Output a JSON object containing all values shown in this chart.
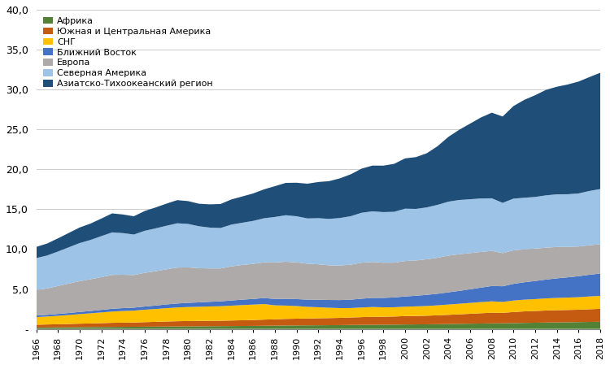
{
  "years": [
    1966,
    1967,
    1968,
    1969,
    1970,
    1971,
    1972,
    1973,
    1974,
    1975,
    1976,
    1977,
    1978,
    1979,
    1980,
    1981,
    1982,
    1983,
    1984,
    1985,
    1986,
    1987,
    1988,
    1989,
    1990,
    1991,
    1992,
    1993,
    1994,
    1995,
    1996,
    1997,
    1998,
    1999,
    2000,
    2001,
    2002,
    2003,
    2004,
    2005,
    2006,
    2007,
    2008,
    2009,
    2010,
    2011,
    2012,
    2013,
    2014,
    2015,
    2016,
    2017,
    2018
  ],
  "series": {
    "Африка": [
      0.18,
      0.19,
      0.2,
      0.21,
      0.22,
      0.23,
      0.24,
      0.25,
      0.26,
      0.27,
      0.28,
      0.29,
      0.3,
      0.31,
      0.32,
      0.33,
      0.34,
      0.35,
      0.36,
      0.37,
      0.38,
      0.4,
      0.41,
      0.43,
      0.44,
      0.45,
      0.46,
      0.47,
      0.48,
      0.5,
      0.51,
      0.52,
      0.53,
      0.54,
      0.56,
      0.57,
      0.58,
      0.6,
      0.62,
      0.64,
      0.66,
      0.68,
      0.7,
      0.71,
      0.73,
      0.76,
      0.78,
      0.8,
      0.82,
      0.84,
      0.86,
      0.88,
      0.9
    ],
    "Южная и Центральная Америка": [
      0.35,
      0.37,
      0.39,
      0.41,
      0.44,
      0.46,
      0.49,
      0.52,
      0.53,
      0.54,
      0.57,
      0.6,
      0.63,
      0.66,
      0.67,
      0.67,
      0.68,
      0.68,
      0.7,
      0.72,
      0.74,
      0.77,
      0.8,
      0.83,
      0.85,
      0.86,
      0.88,
      0.89,
      0.91,
      0.94,
      0.97,
      1.0,
      1.0,
      1.02,
      1.05,
      1.06,
      1.08,
      1.11,
      1.15,
      1.19,
      1.24,
      1.29,
      1.33,
      1.31,
      1.39,
      1.44,
      1.47,
      1.51,
      1.53,
      1.54,
      1.55,
      1.59,
      1.62
    ],
    "СНГ": [
      0.95,
      1.0,
      1.06,
      1.13,
      1.2,
      1.27,
      1.34,
      1.41,
      1.46,
      1.49,
      1.56,
      1.61,
      1.67,
      1.72,
      1.76,
      1.78,
      1.8,
      1.82,
      1.86,
      1.9,
      1.93,
      1.95,
      1.75,
      1.67,
      1.58,
      1.46,
      1.38,
      1.3,
      1.22,
      1.18,
      1.21,
      1.23,
      1.18,
      1.16,
      1.18,
      1.2,
      1.22,
      1.25,
      1.29,
      1.33,
      1.36,
      1.4,
      1.43,
      1.37,
      1.44,
      1.47,
      1.49,
      1.52,
      1.54,
      1.55,
      1.57,
      1.6,
      1.62
    ],
    "Ближний Восток": [
      0.2,
      0.21,
      0.23,
      0.25,
      0.27,
      0.29,
      0.32,
      0.35,
      0.36,
      0.37,
      0.4,
      0.43,
      0.47,
      0.5,
      0.52,
      0.55,
      0.58,
      0.61,
      0.65,
      0.68,
      0.71,
      0.75,
      0.8,
      0.84,
      0.87,
      0.9,
      0.94,
      0.97,
      1.01,
      1.05,
      1.1,
      1.14,
      1.18,
      1.23,
      1.28,
      1.33,
      1.39,
      1.45,
      1.53,
      1.61,
      1.71,
      1.81,
      1.92,
      1.96,
      2.09,
      2.18,
      2.27,
      2.36,
      2.45,
      2.54,
      2.63,
      2.72,
      2.8
    ],
    "Европа": [
      3.2,
      3.3,
      3.5,
      3.68,
      3.85,
      3.98,
      4.1,
      4.24,
      4.18,
      4.08,
      4.22,
      4.3,
      4.4,
      4.5,
      4.44,
      4.28,
      4.18,
      4.12,
      4.27,
      4.35,
      4.39,
      4.48,
      4.57,
      4.65,
      4.6,
      4.5,
      4.44,
      4.34,
      4.33,
      4.38,
      4.51,
      4.5,
      4.41,
      4.35,
      4.44,
      4.42,
      4.46,
      4.51,
      4.6,
      4.59,
      4.53,
      4.47,
      4.4,
      4.15,
      4.2,
      4.12,
      4.06,
      3.99,
      3.93,
      3.82,
      3.72,
      3.7,
      3.67
    ],
    "Северная Америка": [
      4.0,
      4.13,
      4.32,
      4.55,
      4.78,
      4.92,
      5.14,
      5.33,
      5.22,
      5.08,
      5.27,
      5.37,
      5.46,
      5.55,
      5.45,
      5.26,
      5.12,
      5.07,
      5.24,
      5.29,
      5.39,
      5.52,
      5.7,
      5.83,
      5.78,
      5.68,
      5.78,
      5.82,
      5.95,
      6.08,
      6.26,
      6.35,
      6.34,
      6.38,
      6.56,
      6.46,
      6.5,
      6.63,
      6.76,
      6.8,
      6.75,
      6.7,
      6.59,
      6.3,
      6.48,
      6.47,
      6.47,
      6.56,
      6.6,
      6.59,
      6.65,
      6.8,
      6.92
    ],
    "Азиатско-Тихоокеанский регион": [
      1.4,
      1.5,
      1.65,
      1.8,
      1.95,
      2.05,
      2.2,
      2.38,
      2.33,
      2.29,
      2.48,
      2.62,
      2.77,
      2.9,
      2.86,
      2.82,
      2.91,
      3.01,
      3.15,
      3.29,
      3.44,
      3.62,
      3.86,
      4.05,
      4.2,
      4.35,
      4.53,
      4.73,
      4.97,
      5.25,
      5.53,
      5.73,
      5.82,
      6.01,
      6.3,
      6.49,
      6.78,
      7.35,
      8.12,
      8.8,
      9.48,
      10.15,
      10.73,
      10.82,
      11.6,
      12.27,
      12.75,
      13.22,
      13.48,
      13.75,
      14.02,
      14.27,
      14.57
    ]
  },
  "colors": {
    "Африка": "#538135",
    "Южная и Центральная Америка": "#C55A11",
    "СНГ": "#FFC000",
    "Ближний Восток": "#4472C4",
    "Европа": "#AEAAAA",
    "Северная Америка": "#9DC3E6",
    "Азиатско-Тихоокеанский регион": "#1F4E79"
  },
  "ylim": [
    0,
    40
  ],
  "yticks": [
    0,
    5,
    10,
    15,
    20,
    25,
    30,
    35,
    40
  ],
  "ytick_labels": [
    "-",
    "5,0",
    "10,0",
    "15,0",
    "20,0",
    "25,0",
    "30,0",
    "35,0",
    "40,0"
  ],
  "legend_order": [
    "Африка",
    "Южная и Центральная Америка",
    "СНГ",
    "Ближний Восток",
    "Европа",
    "Северная Америка",
    "Азиатско-Тихоокеанский регион"
  ],
  "background_color": "#FFFFFF"
}
